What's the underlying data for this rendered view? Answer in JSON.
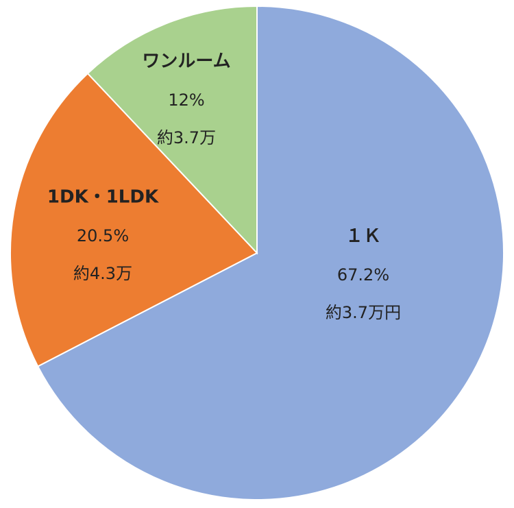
{
  "chart_data": {
    "type": "pie",
    "categories": [
      "１Ｋ",
      "1DK・1LDK",
      "ワンルーム"
    ],
    "values": [
      67.2,
      20.5,
      12
    ],
    "value_labels": [
      "67.2%",
      "20.5%",
      "12%"
    ],
    "amount_labels": [
      "約3.7万円",
      "約4.3万",
      "約3.7万"
    ],
    "colors": [
      "#8faadc",
      "#ed7d31",
      "#a9d18e"
    ]
  }
}
